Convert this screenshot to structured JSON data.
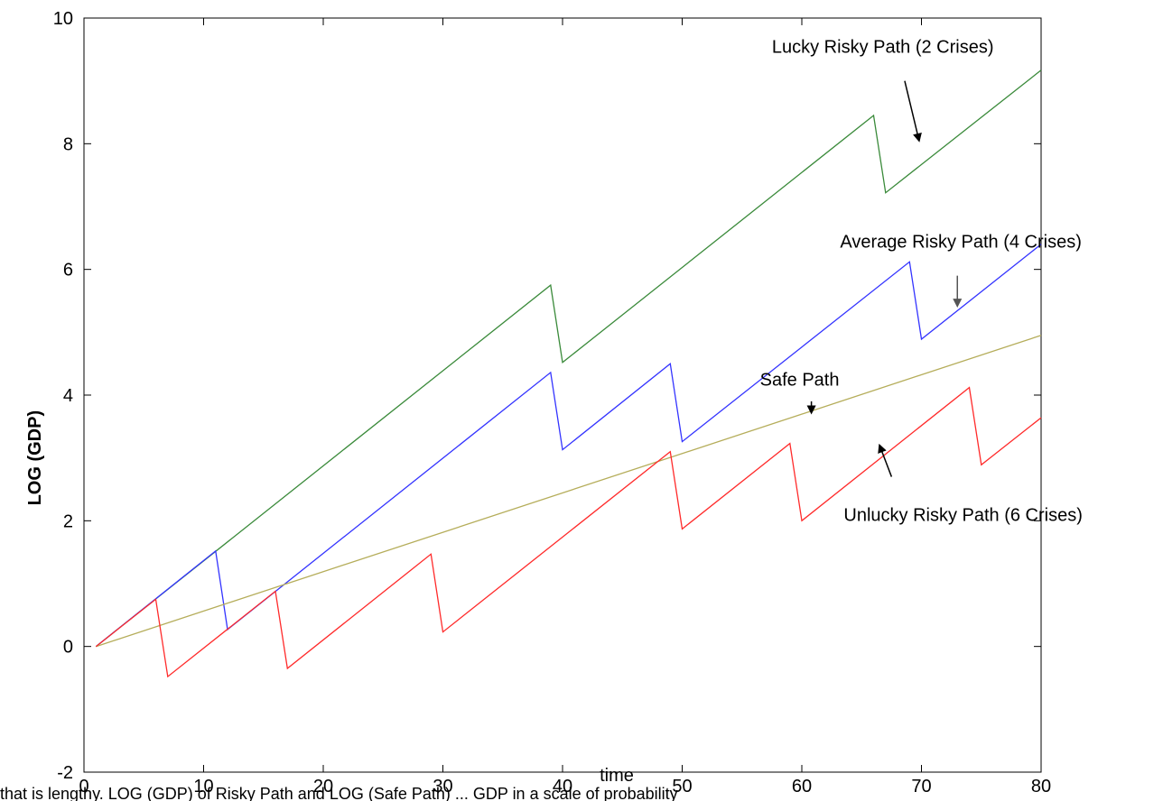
{
  "chart_data": {
    "type": "line",
    "title": "",
    "xlabel": "time",
    "ylabel": "LOG (GDP)",
    "xlim": [
      0,
      80
    ],
    "ylim": [
      -2,
      10
    ],
    "xticks": [
      0,
      10,
      20,
      30,
      40,
      50,
      60,
      70,
      80
    ],
    "yticks": [
      -2,
      0,
      2,
      4,
      6,
      8,
      10
    ],
    "grid": false,
    "series": [
      {
        "name": "Lucky Risky Path (2 Crises)",
        "color": "#3a8a3a",
        "x": [
          1,
          39,
          40,
          66,
          67,
          80
        ],
        "y": [
          0,
          5.75,
          4.52,
          8.45,
          7.22,
          9.17
        ]
      },
      {
        "name": "Average Risky Path (4 Crises)",
        "color": "#3333ff",
        "x": [
          1,
          11,
          12,
          39,
          40,
          49,
          50,
          69,
          70,
          80
        ],
        "y": [
          0,
          1.52,
          0.27,
          4.36,
          3.13,
          4.5,
          3.26,
          6.12,
          4.89,
          6.4
        ]
      },
      {
        "name": "Safe Path",
        "color": "#b5ad5a",
        "x": [
          1,
          80
        ],
        "y": [
          0,
          4.95
        ]
      },
      {
        "name": "Unlucky Risky Path (6 Crises)",
        "color": "#ff2a2a",
        "x": [
          1,
          6,
          7,
          16,
          17,
          29,
          30,
          49,
          50,
          59,
          60,
          74,
          75,
          80
        ],
        "y": [
          0,
          0.75,
          -0.48,
          0.88,
          -0.35,
          1.47,
          0.23,
          3.1,
          1.87,
          3.23,
          2.0,
          4.12,
          2.89,
          3.64
        ]
      }
    ],
    "annotations": [
      {
        "text": "Lucky Risky Path (2 Crises)",
        "text_at": [
          57.5,
          9.45
        ],
        "arrow_from": [
          68.6,
          9.0
        ],
        "arrow_to": [
          69.8,
          8.05
        ],
        "arrow_color": "#000000"
      },
      {
        "text": "Average Risky Path (4 Crises)",
        "text_at": [
          63.2,
          6.35
        ],
        "arrow_from": [
          73.0,
          5.9
        ],
        "arrow_to": [
          73.0,
          5.42
        ],
        "arrow_color": "#555555"
      },
      {
        "text": "Safe Path",
        "text_at": [
          56.5,
          4.15
        ],
        "arrow_from": [
          60.8,
          3.9
        ],
        "arrow_to": [
          60.8,
          3.72
        ],
        "arrow_color": "#000000"
      },
      {
        "text": "Unlucky Risky Path (6 Crises)",
        "text_at": [
          63.5,
          2.0
        ],
        "arrow_from": [
          67.5,
          2.7
        ],
        "arrow_to": [
          66.5,
          3.2
        ],
        "arrow_color": "#000000"
      }
    ]
  },
  "caption": "that is lengthy. LOG (GDP) of Risky Path and LOG (Safe Path) ... GDP in a scale of probability"
}
